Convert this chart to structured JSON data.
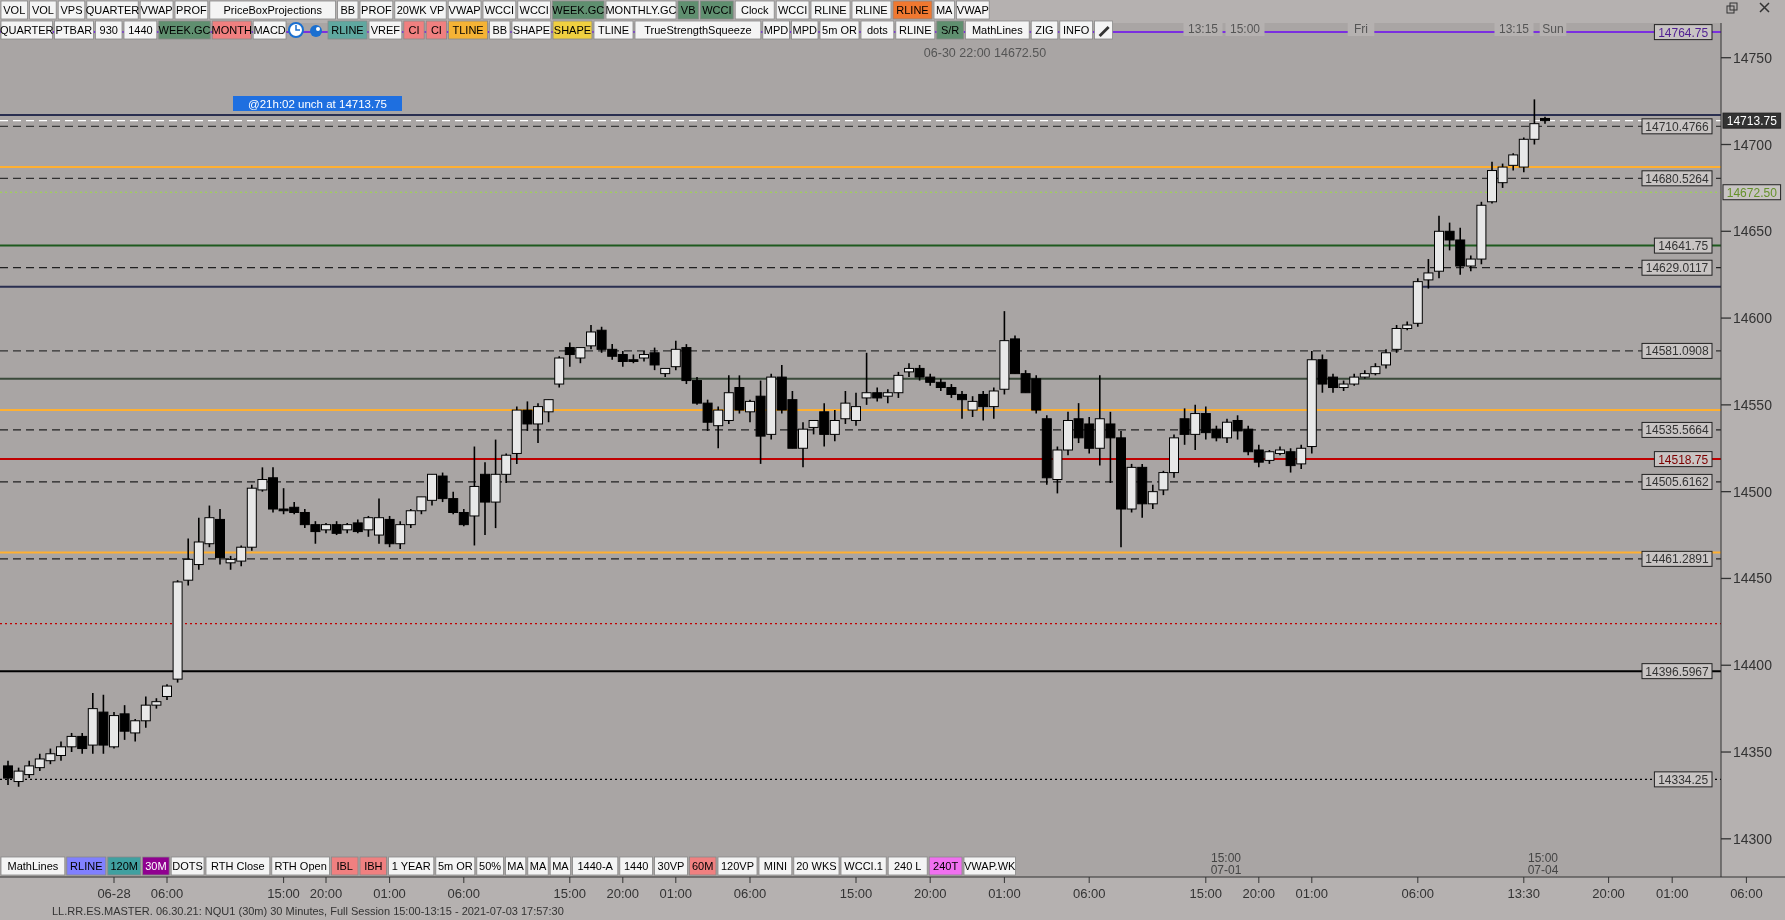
{
  "chart_data": {
    "type": "candlestick",
    "categories": [
      null,
      null,
      null,
      null,
      null,
      null,
      null,
      null,
      null,
      null,
      "06-28",
      null,
      null,
      null,
      null,
      "06:00",
      null,
      null,
      null,
      null,
      null,
      null,
      null,
      null,
      null,
      null,
      "15:00",
      null,
      null,
      null,
      "20:00",
      null,
      null,
      null,
      null,
      null,
      "01:00",
      null,
      null,
      null,
      null,
      null,
      null,
      "06:00",
      null,
      null,
      null,
      null,
      null,
      null,
      null,
      null,
      null,
      "15:00",
      null,
      null,
      null,
      null,
      "20:00",
      null,
      null,
      null,
      null,
      "01:00",
      null,
      null,
      null,
      null,
      null,
      null,
      "06:00",
      null,
      null,
      null,
      null,
      null,
      null,
      null,
      null,
      null,
      "15:00",
      null,
      null,
      null,
      null,
      null,
      null,
      "20:00",
      null,
      null,
      null,
      null,
      null,
      null,
      "01:00",
      null,
      null,
      null,
      null,
      null,
      null,
      null,
      "06:00",
      null,
      null,
      null,
      null,
      null,
      null,
      null,
      null,
      null,
      null,
      "15:00",
      null,
      null,
      null,
      null,
      "20:00",
      null,
      null,
      null,
      null,
      "01:00",
      null,
      null,
      null,
      null,
      null,
      null,
      null,
      null,
      null,
      "06:00",
      null,
      null,
      null,
      null,
      null,
      null,
      null,
      null,
      null,
      "13:30",
      null,
      null,
      null,
      null,
      null,
      null,
      null,
      "20:00",
      null,
      null,
      null,
      null,
      null,
      "01:00",
      null,
      null,
      null,
      null,
      null,
      null,
      "06:00",
      null
    ],
    "ohlc": [
      [
        14342,
        14345,
        14331,
        14335
      ],
      [
        14333,
        14341,
        14330,
        14339
      ],
      [
        14337,
        14345,
        14335,
        14342
      ],
      [
        14341,
        14349,
        14339,
        14346
      ],
      [
        14345,
        14352,
        14343,
        14349
      ],
      [
        14348,
        14356,
        14345,
        14353
      ],
      [
        14353,
        14361,
        14350,
        14359
      ],
      [
        14359,
        14361,
        14349,
        14352
      ],
      [
        14354,
        14384,
        14349,
        14375
      ],
      [
        14373,
        14383,
        14349,
        14354
      ],
      [
        14353,
        14373,
        14352,
        14371
      ],
      [
        14372,
        14377,
        14357,
        14362
      ],
      [
        14361,
        14369,
        14356,
        14368
      ],
      [
        14368,
        14382,
        14364,
        14377
      ],
      [
        14377,
        14381,
        14375,
        14379
      ],
      [
        14382,
        14389,
        14380,
        14388
      ],
      [
        14392,
        14449,
        14390,
        14448
      ],
      [
        14449,
        14473,
        14446,
        14461
      ],
      [
        14458,
        14485,
        14455,
        14471
      ],
      [
        14470,
        14492,
        14468,
        14485
      ],
      [
        14484,
        14490,
        14458,
        14462
      ],
      [
        14459,
        14463,
        14455,
        14461
      ],
      [
        14460,
        14469,
        14457,
        14468
      ],
      [
        14468,
        14504,
        14466,
        14502
      ],
      [
        14501,
        14514,
        14500,
        14507
      ],
      [
        14508,
        14514,
        14488,
        14490
      ],
      [
        14490,
        14502,
        14487,
        14489
      ],
      [
        14491,
        14494,
        14487,
        14488
      ],
      [
        14488,
        14490,
        14479,
        14481
      ],
      [
        14481,
        14483,
        14470,
        14477
      ],
      [
        14478,
        14482,
        14476,
        14481
      ],
      [
        14481,
        14483,
        14475,
        14476
      ],
      [
        14478,
        14482,
        14476,
        14481
      ],
      [
        14482,
        14484,
        14476,
        14477
      ],
      [
        14478,
        14486,
        14474,
        14485
      ],
      [
        14475,
        14496,
        14470,
        14485
      ],
      [
        14484,
        14486,
        14468,
        14470
      ],
      [
        14470,
        14483,
        14467,
        14481
      ],
      [
        14481,
        14490,
        14479,
        14489
      ],
      [
        14489,
        14497,
        14487,
        14497
      ],
      [
        14495,
        14510,
        14492,
        14510
      ],
      [
        14509,
        14511,
        14494,
        14496
      ],
      [
        14496,
        14500,
        14487,
        14488
      ],
      [
        14488,
        14490,
        14480,
        14481
      ],
      [
        14486,
        14526,
        14469,
        14503
      ],
      [
        14510,
        14517,
        14475,
        14494
      ],
      [
        14494,
        14530,
        14479,
        14510
      ],
      [
        14510,
        14522,
        14505,
        14521
      ],
      [
        14522,
        14549,
        14516,
        14547
      ],
      [
        14547,
        14552,
        14535,
        14539
      ],
      [
        14539,
        14551,
        14528,
        14549
      ],
      [
        14546,
        14553,
        14540,
        14553
      ],
      [
        14562,
        14578,
        14560,
        14577
      ],
      [
        14583,
        14586,
        14572,
        14579
      ],
      [
        14577,
        14583,
        14574,
        14583
      ],
      [
        14584,
        14596,
        14582,
        14592
      ],
      [
        14593,
        14595,
        14580,
        14582
      ],
      [
        14582,
        14585,
        14576,
        14578
      ],
      [
        14579,
        14581,
        14572,
        14575
      ],
      [
        14576,
        14579,
        14574,
        14575
      ],
      [
        14577,
        14581,
        14575,
        14579
      ],
      [
        14580,
        14583,
        14570,
        14573
      ],
      [
        14568,
        14571,
        14566,
        14571
      ],
      [
        14572,
        14587,
        14570,
        14582
      ],
      [
        14583,
        14585,
        14562,
        14564
      ],
      [
        14564,
        14566,
        14550,
        14551
      ],
      [
        14551,
        14553,
        14535,
        14540
      ],
      [
        14538,
        14549,
        14525,
        14547
      ],
      [
        14541,
        14567,
        14539,
        14557
      ],
      [
        14560,
        14567,
        14545,
        14547
      ],
      [
        14546,
        14553,
        14540,
        14552
      ],
      [
        14555,
        14564,
        14516,
        14532
      ],
      [
        14533,
        14568,
        14530,
        14566
      ],
      [
        14566,
        14573,
        14545,
        14547
      ],
      [
        14553,
        14558,
        14525,
        14525
      ],
      [
        14525,
        14540,
        14514,
        14536
      ],
      [
        14537,
        14541,
        14533,
        14541
      ],
      [
        14546,
        14551,
        14526,
        14533
      ],
      [
        14533,
        14547,
        14529,
        14541
      ],
      [
        14542,
        14558,
        14539,
        14551
      ],
      [
        14541,
        14557,
        14538,
        14549
      ],
      [
        14554,
        14580,
        14550,
        14557
      ],
      [
        14557,
        14560,
        14552,
        14554
      ],
      [
        14555,
        14559,
        14551,
        14557
      ],
      [
        14557,
        14569,
        14554,
        14567
      ],
      [
        14569,
        14574,
        14566,
        14571
      ],
      [
        14571,
        14573,
        14564,
        14566
      ],
      [
        14566,
        14568,
        14561,
        14563
      ],
      [
        14563,
        14565,
        14558,
        14560
      ],
      [
        14560,
        14562,
        14554,
        14556
      ],
      [
        14556,
        14558,
        14542,
        14553
      ],
      [
        14547,
        14555,
        14543,
        14552
      ],
      [
        14556,
        14558,
        14541,
        14549
      ],
      [
        14549,
        14560,
        14542,
        14558
      ],
      [
        14559,
        14604,
        14556,
        14587
      ],
      [
        14588,
        14590,
        14568,
        14568
      ],
      [
        14568,
        14570,
        14557,
        14557
      ],
      [
        14565,
        14567,
        14545,
        14547
      ],
      [
        14542,
        14544,
        14504,
        14508
      ],
      [
        14507,
        14526,
        14499,
        14524
      ],
      [
        14524,
        14546,
        14521,
        14541
      ],
      [
        14542,
        14551,
        14528,
        14531
      ],
      [
        14539,
        14543,
        14522,
        14525
      ],
      [
        14525,
        14567,
        14515,
        14542
      ],
      [
        14539,
        14546,
        14505,
        14531
      ],
      [
        14531,
        14535,
        14468,
        14490
      ],
      [
        14490,
        14516,
        14488,
        14514
      ],
      [
        14514,
        14516,
        14485,
        14493
      ],
      [
        14493,
        14504,
        14490,
        14500
      ],
      [
        14501,
        14512,
        14498,
        14511
      ],
      [
        14511,
        14533,
        14508,
        14531
      ],
      [
        14542,
        14548,
        14527,
        14533
      ],
      [
        14533,
        14550,
        14524,
        14545
      ],
      [
        14545,
        14549,
        14530,
        14534
      ],
      [
        14536,
        14538,
        14529,
        14531
      ],
      [
        14531,
        14542,
        14528,
        14540
      ],
      [
        14541,
        14544,
        14530,
        14535
      ],
      [
        14536,
        14538,
        14521,
        14523
      ],
      [
        14524,
        14527,
        14514,
        14517
      ],
      [
        14518,
        14524,
        14516,
        14523
      ],
      [
        14522,
        14526,
        14521,
        14524
      ],
      [
        14523,
        14525,
        14511,
        14515
      ],
      [
        14516,
        14527,
        14513,
        14525
      ],
      [
        14526,
        14581,
        14522,
        14576
      ],
      [
        14576,
        14579,
        14557,
        14562
      ],
      [
        14566,
        14568,
        14557,
        14560
      ],
      [
        14560,
        14564,
        14558,
        14562
      ],
      [
        14562,
        14568,
        14561,
        14566
      ],
      [
        14566,
        14570,
        14565,
        14568
      ],
      [
        14568,
        14574,
        14567,
        14572
      ],
      [
        14573,
        14582,
        14571,
        14580
      ],
      [
        14582,
        14596,
        14580,
        14594
      ],
      [
        14594,
        14598,
        14593,
        14596
      ],
      [
        14597,
        14623,
        14595,
        14621
      ],
      [
        14622,
        14634,
        14617,
        14626
      ],
      [
        14627,
        14659,
        14623,
        14650
      ],
      [
        14650,
        14655,
        14639,
        14645
      ],
      [
        14645,
        14652,
        14625,
        14630
      ],
      [
        14630,
        14636,
        14627,
        14634
      ],
      [
        14634,
        14667,
        14631,
        14665
      ],
      [
        14667,
        14690,
        14666,
        14685
      ],
      [
        14678,
        14689,
        14675,
        14687
      ],
      [
        14688,
        14695,
        14685,
        14694
      ],
      [
        14687,
        14704,
        14684,
        14703
      ],
      [
        14703,
        14726,
        14700,
        14712
      ],
      [
        14715,
        14716,
        14712,
        14713.75
      ],
      null,
      null,
      null,
      null,
      null,
      null,
      null,
      null,
      null,
      null,
      null,
      null,
      null,
      null,
      null,
      null,
      null,
      null,
      null,
      null
    ],
    "ylim": [
      14278,
      14770
    ],
    "yticks": [
      14300,
      14350,
      14400,
      14450,
      14500,
      14550,
      14600,
      14650,
      14700,
      14750
    ],
    "ref_lines": [
      {
        "axis": "y",
        "value": 14764.75,
        "label": "14764.75",
        "color": "#7b2fe0",
        "line_style": "solid"
      },
      {
        "axis": "y",
        "value": 14717,
        "color": "#2a2f50",
        "line_style": "solid"
      },
      {
        "axis": "y",
        "value": 14710.4766,
        "label": "14710.4766",
        "color": "#3a3a3a",
        "line_style": "dashed"
      },
      {
        "axis": "y",
        "value": 14713.75,
        "label": "14713.75",
        "color": "#ffffff",
        "line_style": "dashed"
      },
      {
        "axis": "y",
        "value": 14687,
        "color": "#ffb030",
        "line_style": "solid"
      },
      {
        "axis": "y",
        "value": 14680.5264,
        "label": "14680.5264",
        "color": "#303030",
        "line_style": "dashed"
      },
      {
        "axis": "y",
        "value": 14672.5,
        "label": "14672.50",
        "color": "#9be040",
        "line_style": "dotted"
      },
      {
        "axis": "y",
        "value": 14641.75,
        "label": "14641.75",
        "color": "#1e5a1e",
        "line_style": "solid"
      },
      {
        "axis": "y",
        "value": 14629.0117,
        "label": "14629.0117",
        "color": "#202020",
        "line_style": "dashed"
      },
      {
        "axis": "y",
        "value": 14618,
        "color": "#2a2f50",
        "line_style": "solid"
      },
      {
        "axis": "y",
        "value": 14581.0908,
        "label": "14581.0908",
        "color": "#303030",
        "line_style": "dashed"
      },
      {
        "axis": "y",
        "value": 14565,
        "color": "#3a4a3a",
        "line_style": "solid"
      },
      {
        "axis": "y",
        "value": 14547,
        "color": "#ffb030",
        "line_style": "solid"
      },
      {
        "axis": "y",
        "value": 14535.5664,
        "label": "14535.5664",
        "color": "#202020",
        "line_style": "dashed"
      },
      {
        "axis": "y",
        "value": 14518.75,
        "label": "14518.75",
        "color": "#c00000",
        "line_style": "solid"
      },
      {
        "axis": "y",
        "value": 14505.6162,
        "label": "14505.6162",
        "color": "#202020",
        "line_style": "dashed"
      },
      {
        "axis": "y",
        "value": 14465,
        "color": "#ffb030",
        "line_style": "solid"
      },
      {
        "axis": "y",
        "value": 14461.2891,
        "label": "14461.2891",
        "color": "#202020",
        "line_style": "dashed"
      },
      {
        "axis": "y",
        "value": 14424,
        "color": "#c00000",
        "line_style": "dotted"
      },
      {
        "axis": "y",
        "value": 14396.5967,
        "label": "14396.5967",
        "color": "#000000",
        "line_style": "solid"
      },
      {
        "axis": "y",
        "value": 14334.25,
        "label": "14334.25",
        "color": "#000000",
        "line_style": "dotted"
      }
    ],
    "annotations": [
      "VOL",
      "VOL",
      "VPS",
      "QUARTER",
      "VWAP",
      "PROF",
      "PriceBoxProjections",
      "BB",
      "PROF",
      "20WK VP",
      "VWAP",
      "WCCI",
      "WCCI",
      "WEEK.GC",
      "MONTHLY.GC",
      "VB",
      "WCCI",
      "Clock",
      "WCCI",
      "RLINE",
      "RLINE",
      "RLINE",
      "MA",
      "VWAP",
      "QUARTER",
      "PTBAR",
      "930",
      "1440",
      "WEEK.GC",
      "MONTH",
      "MACD",
      "RLINE",
      "VREF",
      "CI",
      "CI",
      "TLINE",
      "BB",
      "SHAPE",
      "SHAPE",
      "TLINE",
      "TrueStrengthSqueeze",
      "MPD",
      "MPD",
      "5m OR",
      "dots",
      "RLINE",
      "S/R",
      "MathLines",
      "ZIG",
      "INFO",
      "MathLines",
      "RLINE",
      "120M",
      "30M",
      "DOTS",
      "RTH Close",
      "RTH Open",
      "IBL",
      "IBH",
      "1 YEAR",
      "5m OR",
      "50%",
      "MA",
      "MA",
      "MA",
      "1440-A",
      "1440",
      "30VP",
      "60M",
      "120VP",
      "MINI",
      "20 WKS",
      "WCCI.1",
      "240 L",
      "240T",
      "VWAP.WK",
      "13:15",
      "15:00",
      "Fri",
      "13:15",
      "Sun",
      "@21h:02  unch at 14713.75",
      "06-30 22:00  14672.50",
      "15:00 07-01",
      "15:00 07-04",
      "LL.RR.ES.MASTER.     06.30.21: NQU1 (30m) 30 Minutes, Full Session 15:00-13:15 - 2021-07-03 17:57:30"
    ]
  }
}
